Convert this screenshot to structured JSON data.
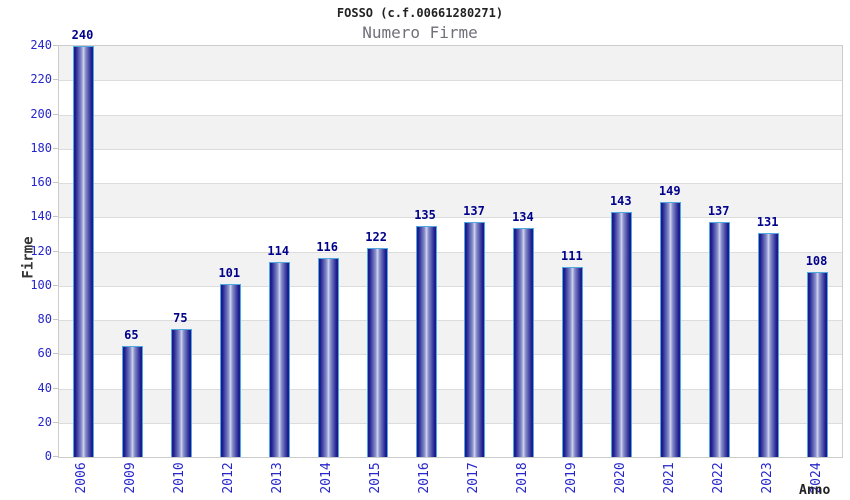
{
  "chart_data": {
    "type": "bar",
    "title": "FOSSO (c.f.00661280271)",
    "subtitle": "Numero Firme",
    "xlabel": "Anno",
    "ylabel": "Firme",
    "categories": [
      "2006",
      "2009",
      "2010",
      "2012",
      "2013",
      "2014",
      "2015",
      "2016",
      "2017",
      "2018",
      "2019",
      "2020",
      "2021",
      "2022",
      "2023",
      "2024"
    ],
    "values": [
      240,
      65,
      75,
      101,
      114,
      116,
      122,
      135,
      137,
      134,
      111,
      143,
      149,
      137,
      131,
      108
    ],
    "ylim": [
      0,
      240
    ],
    "ytick_step": 20,
    "grid": "horizontal-bands",
    "legend_position": "none",
    "value_labels": "above-bars",
    "x_tick_rotation": -90,
    "colors": {
      "bar_dark": "#1c1c8e",
      "bar_mid": "#8a90cc",
      "bar_light": "#d2d6ee",
      "bar_border": "#4fa8de",
      "tick_text_blue": "#2626cc",
      "value_label_navy": "#00008b",
      "band_gray": "#f2f2f2",
      "band_white": "#ffffff",
      "gridline": "#dcdcdc",
      "plot_border": "#cccccc",
      "title_text": "#222222",
      "subtitle_text": "#70707a",
      "axis_title_text": "#333333"
    }
  }
}
